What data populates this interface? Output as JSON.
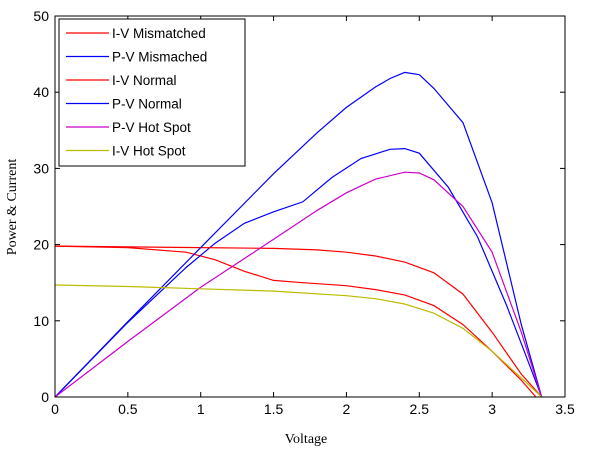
{
  "chart_data": {
    "type": "line",
    "xlabel": "Voltage",
    "ylabel": "Power & Current",
    "xlim": [
      0,
      3.5
    ],
    "ylim": [
      0,
      50
    ],
    "xticks": [
      "0",
      "0.5",
      "1",
      "1.5",
      "2",
      "2.5",
      "3",
      "3.5"
    ],
    "yticks": [
      "0",
      "10",
      "20",
      "30",
      "40",
      "50"
    ],
    "grid": false,
    "legend_position": "top-left",
    "series": [
      {
        "name": "I-V Mismatched",
        "color": "#ff0000",
        "x": [
          0,
          0.5,
          0.9,
          1.1,
          1.3,
          1.5,
          1.7,
          2.0,
          2.2,
          2.4,
          2.6,
          2.8,
          3.0,
          3.2,
          3.3
        ],
        "y": [
          19.8,
          19.6,
          19.0,
          18.0,
          16.5,
          15.3,
          15.0,
          14.6,
          14.1,
          13.4,
          12.0,
          9.5,
          6.0,
          2.2,
          0
        ]
      },
      {
        "name": "P-V Mismached",
        "color": "#0000ff",
        "x": [
          0,
          0.5,
          0.9,
          1.1,
          1.3,
          1.5,
          1.7,
          1.9,
          2.1,
          2.3,
          2.4,
          2.5,
          2.7,
          2.9,
          3.1,
          3.25,
          3.34
        ],
        "y": [
          0,
          9.8,
          17.0,
          20.2,
          22.8,
          24.3,
          25.6,
          28.8,
          31.3,
          32.5,
          32.6,
          32.0,
          27.5,
          21.0,
          12.0,
          4.5,
          0
        ]
      },
      {
        "name": "I-V  Normal",
        "color": "#ff0000",
        "x": [
          0,
          0.5,
          1.0,
          1.5,
          1.8,
          2.0,
          2.2,
          2.4,
          2.6,
          2.8,
          3.0,
          3.2,
          3.34
        ],
        "y": [
          19.8,
          19.7,
          19.6,
          19.5,
          19.3,
          19.0,
          18.5,
          17.7,
          16.3,
          13.5,
          8.5,
          3.0,
          0
        ]
      },
      {
        "name": "P-V  Normal",
        "color": "#0000ff",
        "x": [
          0,
          0.5,
          1.0,
          1.5,
          1.8,
          2.0,
          2.2,
          2.3,
          2.4,
          2.5,
          2.6,
          2.8,
          3.0,
          3.2,
          3.34
        ],
        "y": [
          0,
          9.9,
          19.6,
          29.3,
          34.7,
          38.0,
          40.7,
          41.8,
          42.6,
          42.3,
          40.5,
          36.0,
          25.5,
          9.5,
          0
        ]
      },
      {
        "name": "P-V Hot Spot",
        "color": "#cc00cc",
        "x": [
          0,
          0.5,
          1.0,
          1.5,
          1.8,
          2.0,
          2.2,
          2.4,
          2.5,
          2.6,
          2.8,
          3.0,
          3.2,
          3.34
        ],
        "y": [
          0,
          7.3,
          14.4,
          20.7,
          24.5,
          26.8,
          28.6,
          29.5,
          29.4,
          28.5,
          25.0,
          19.0,
          8.5,
          0
        ]
      },
      {
        "name": "I-V Hot Spot",
        "color": "#bbbb00",
        "x": [
          0,
          0.5,
          1.0,
          1.5,
          2.0,
          2.2,
          2.4,
          2.6,
          2.8,
          3.0,
          3.2,
          3.34
        ],
        "y": [
          14.7,
          14.5,
          14.2,
          13.9,
          13.3,
          12.9,
          12.2,
          11.0,
          9.0,
          6.0,
          2.5,
          0
        ]
      }
    ]
  }
}
